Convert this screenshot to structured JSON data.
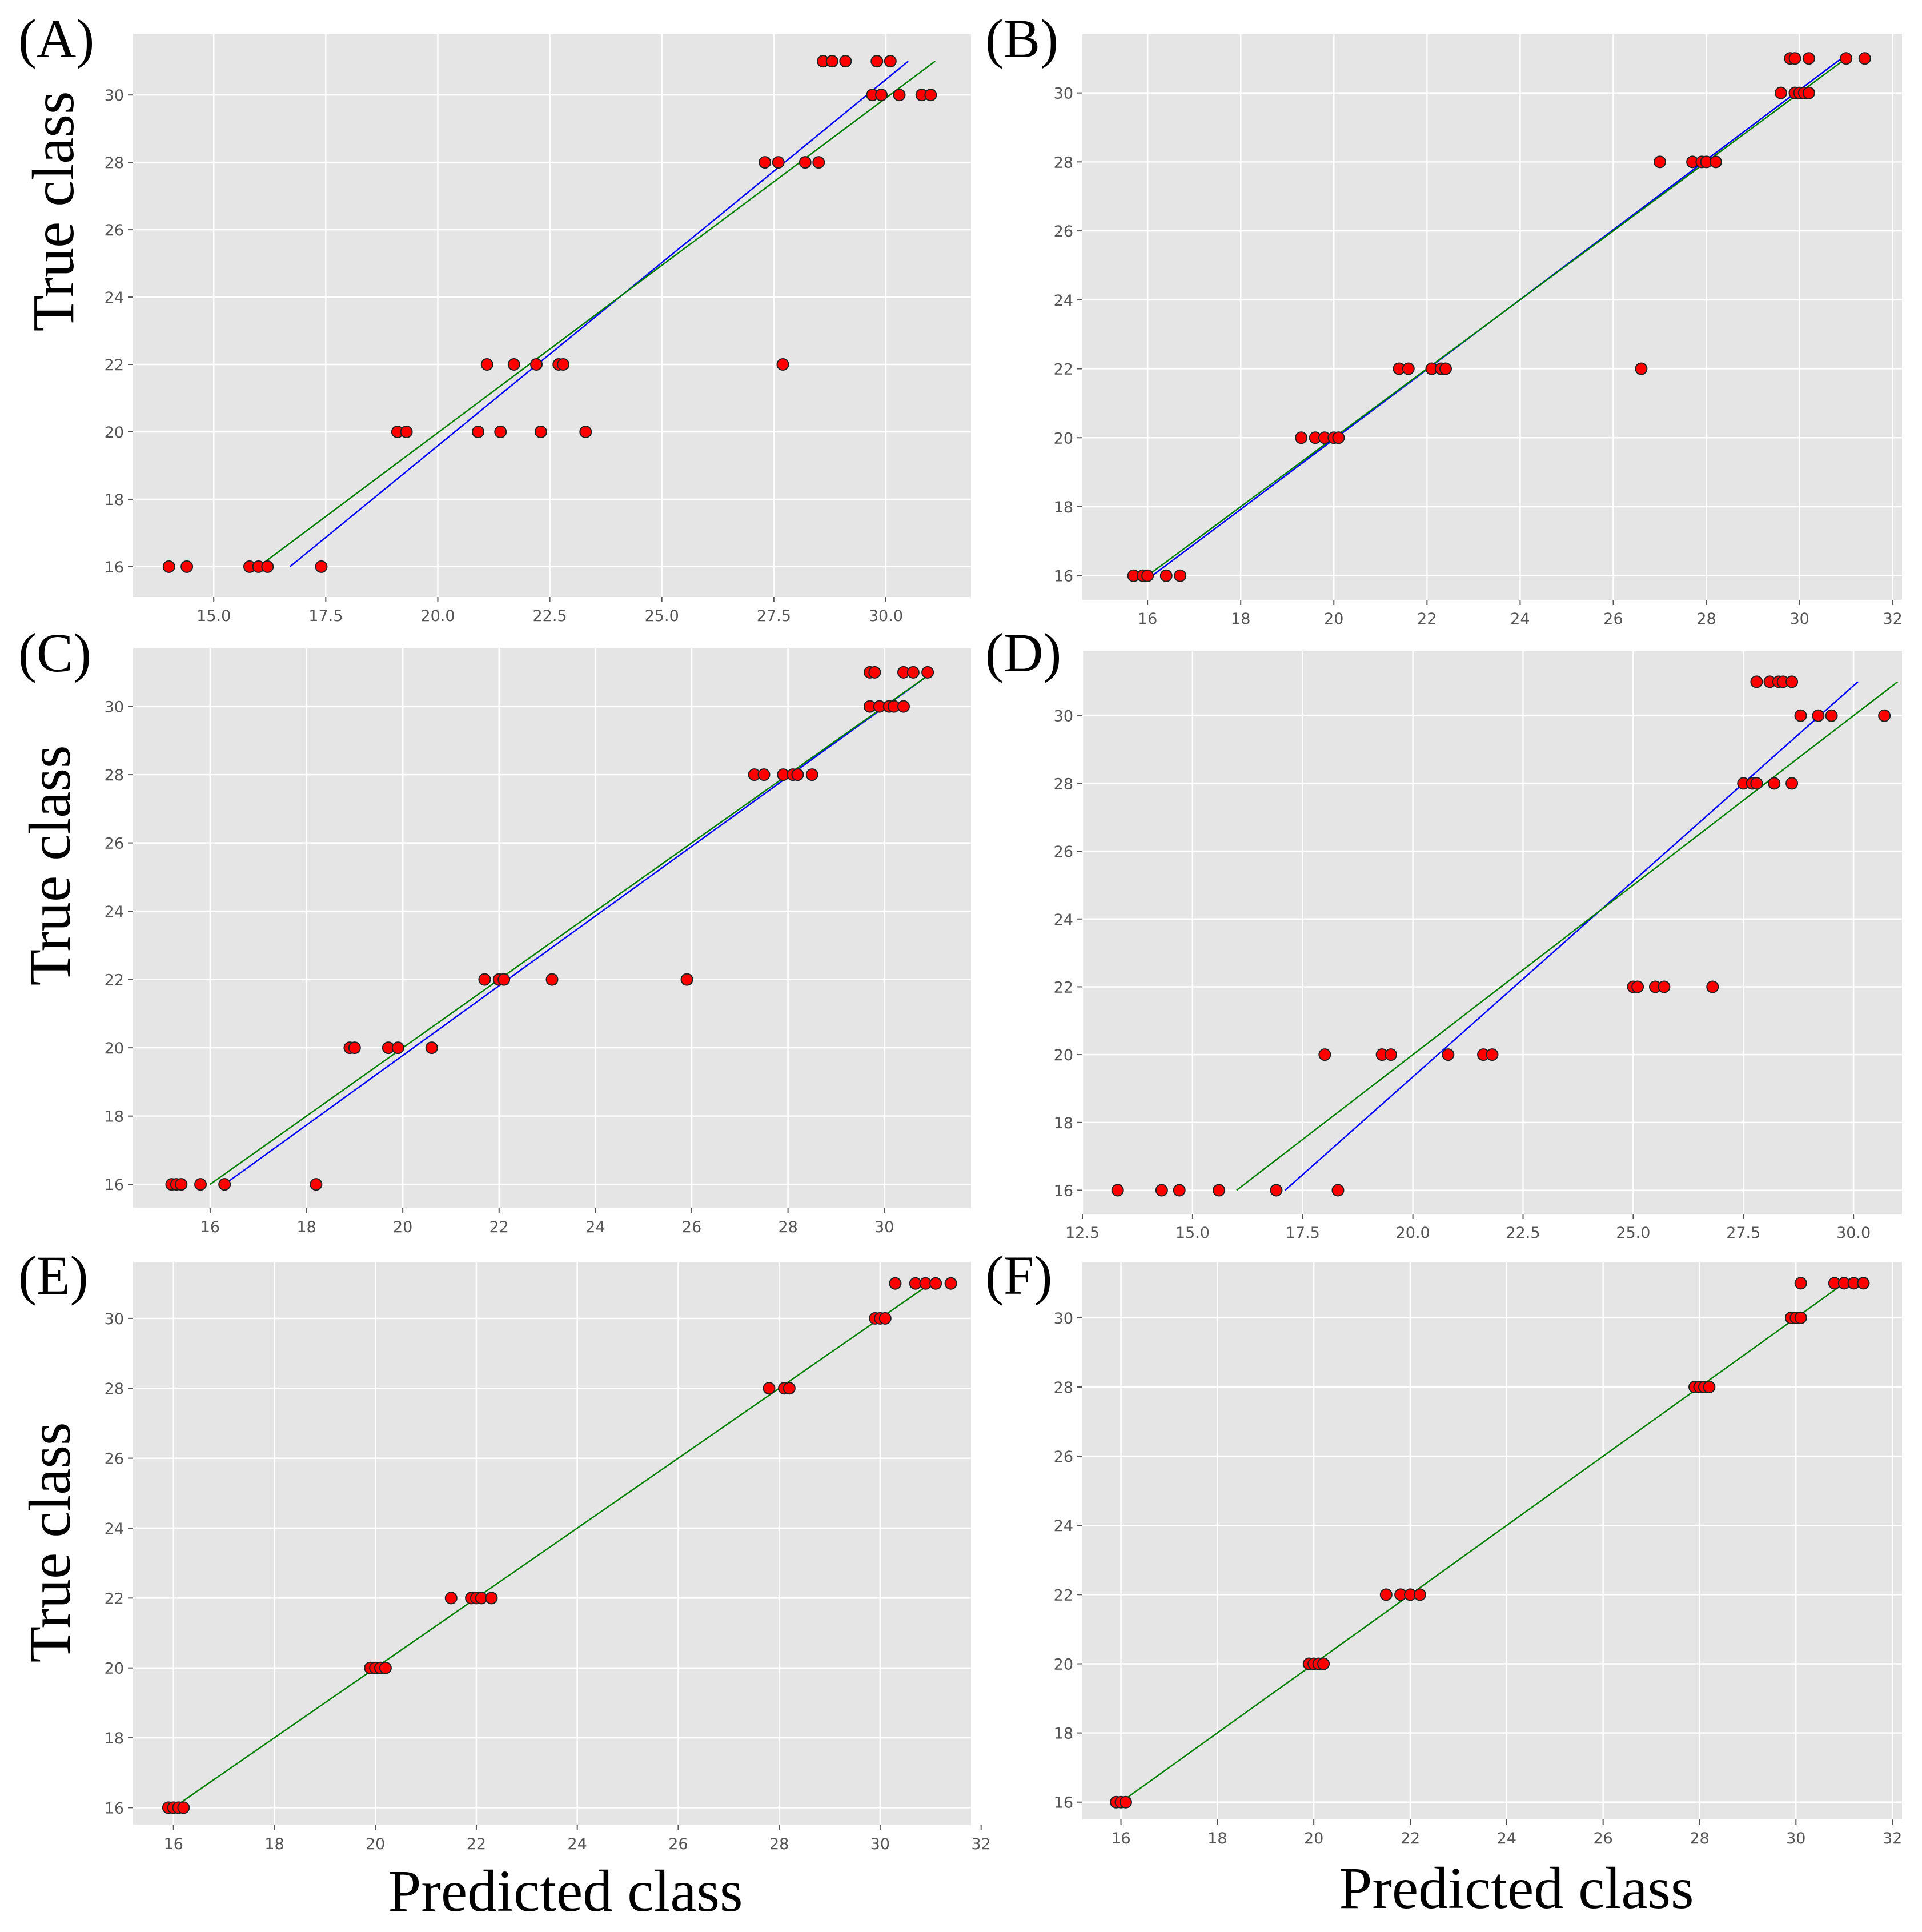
{
  "figure": {
    "xlabel": "Predicted class",
    "ylabel": "True class"
  },
  "chart_data": [
    {
      "type": "scatter",
      "panel": "(A)",
      "xlim": [
        13.2,
        31.9
      ],
      "ylim": [
        15.1,
        31.8
      ],
      "xticks": [
        15.0,
        17.5,
        20.0,
        22.5,
        25.0,
        27.5,
        30.0
      ],
      "xtick_labels": [
        "15.0",
        "17.5",
        "20.0",
        "22.5",
        "25.0",
        "27.5",
        "30.0"
      ],
      "yticks": [
        16,
        18,
        20,
        22,
        24,
        26,
        28,
        30
      ],
      "ytick_labels": [
        "16",
        "18",
        "20",
        "22",
        "24",
        "26",
        "28",
        "30"
      ],
      "points": {
        "x": [
          14.0,
          14.4,
          15.8,
          16.0,
          16.2,
          17.4,
          19.1,
          19.3,
          20.9,
          21.4,
          22.3,
          23.3,
          21.1,
          21.7,
          22.2,
          22.7,
          22.8,
          27.7,
          27.3,
          27.6,
          28.2,
          28.5,
          29.7,
          29.9,
          30.3,
          30.8,
          31.0,
          28.6,
          28.8,
          29.1,
          29.8,
          30.1
        ],
        "y": [
          16,
          16,
          16,
          16,
          16,
          16,
          20,
          20,
          20,
          20,
          20,
          20,
          22,
          22,
          22,
          22,
          22,
          22,
          28,
          28,
          28,
          28,
          30,
          30,
          30,
          30,
          30,
          31,
          31,
          31,
          31,
          31
        ]
      },
      "lines": [
        {
          "name": "blue fit",
          "color": "#0000ff",
          "x": [
            16.7,
            30.5
          ],
          "y": [
            16.0,
            31.0
          ]
        },
        {
          "name": "green fit",
          "color": "#008000",
          "x": [
            16.0,
            31.1
          ],
          "y": [
            16.0,
            31.0
          ]
        }
      ]
    },
    {
      "type": "scatter",
      "panel": "(B)",
      "xlim": [
        14.6,
        32.2
      ],
      "ylim": [
        15.3,
        31.7
      ],
      "xticks": [
        16,
        18,
        20,
        22,
        24,
        26,
        28,
        30,
        32
      ],
      "xtick_labels": [
        "16",
        "18",
        "20",
        "22",
        "24",
        "26",
        "28",
        "30",
        "32"
      ],
      "yticks": [
        16,
        18,
        20,
        22,
        24,
        26,
        28,
        30
      ],
      "ytick_labels": [
        "16",
        "18",
        "20",
        "22",
        "24",
        "26",
        "28",
        "30"
      ],
      "points": {
        "x": [
          15.7,
          15.9,
          16.0,
          16.4,
          16.7,
          19.3,
          19.6,
          19.8,
          20.0,
          20.1,
          21.4,
          21.6,
          22.1,
          22.3,
          22.4,
          26.6,
          27.0,
          27.7,
          27.9,
          28.0,
          28.2,
          29.6,
          29.9,
          30.0,
          30.1,
          30.2,
          29.8,
          29.9,
          30.2,
          31.0,
          31.4
        ],
        "y": [
          16,
          16,
          16,
          16,
          16,
          20,
          20,
          20,
          20,
          20,
          22,
          22,
          22,
          22,
          22,
          22,
          28,
          28,
          28,
          28,
          28,
          30,
          30,
          30,
          30,
          30,
          31,
          31,
          31,
          31,
          31
        ]
      },
      "lines": [
        {
          "name": "blue fit",
          "color": "#0000ff",
          "x": [
            16.1,
            30.9
          ],
          "y": [
            16.0,
            31.0
          ]
        },
        {
          "name": "green fit",
          "color": "#008000",
          "x": [
            16.0,
            31.0
          ],
          "y": [
            16.0,
            31.0
          ]
        }
      ]
    },
    {
      "type": "scatter",
      "panel": "(C)",
      "xlim": [
        14.4,
        31.8
      ],
      "ylim": [
        15.3,
        31.7
      ],
      "xticks": [
        16,
        18,
        20,
        22,
        24,
        26,
        28,
        30
      ],
      "xtick_labels": [
        "16",
        "18",
        "20",
        "22",
        "24",
        "26",
        "28",
        "30"
      ],
      "yticks": [
        16,
        18,
        20,
        22,
        24,
        26,
        28,
        30
      ],
      "ytick_labels": [
        "16",
        "18",
        "20",
        "22",
        "24",
        "26",
        "28",
        "30"
      ],
      "points": {
        "x": [
          15.2,
          15.3,
          15.4,
          15.8,
          16.3,
          18.2,
          18.9,
          19.0,
          19.7,
          19.9,
          20.6,
          21.7,
          22.0,
          22.1,
          23.1,
          25.9,
          27.3,
          27.5,
          27.9,
          28.1,
          28.2,
          28.5,
          29.7,
          29.9,
          30.1,
          30.2,
          30.4,
          29.7,
          29.8,
          30.4,
          30.6,
          30.9
        ],
        "y": [
          16,
          16,
          16,
          16,
          16,
          16,
          20,
          20,
          20,
          20,
          20,
          22,
          22,
          22,
          22,
          22,
          28,
          28,
          28,
          28,
          28,
          28,
          30,
          30,
          30,
          30,
          30,
          31,
          31,
          31,
          31,
          31
        ]
      },
      "lines": [
        {
          "name": "blue fit",
          "color": "#0000ff",
          "x": [
            16.3,
            31.0
          ],
          "y": [
            16.0,
            31.0
          ]
        },
        {
          "name": "green fit",
          "color": "#008000",
          "x": [
            16.0,
            31.0
          ],
          "y": [
            16.0,
            31.0
          ]
        }
      ]
    },
    {
      "type": "scatter",
      "panel": "(D)",
      "xlim": [
        12.5,
        31.1
      ],
      "ylim": [
        15.3,
        31.9
      ],
      "xticks": [
        12.5,
        15.0,
        17.5,
        20.0,
        22.5,
        25.0,
        27.5,
        30.0
      ],
      "xtick_labels": [
        "12.5",
        "15.0",
        "17.5",
        "20.0",
        "22.5",
        "25.0",
        "27.5",
        "30.0"
      ],
      "yticks": [
        16,
        18,
        20,
        22,
        24,
        26,
        28,
        30
      ],
      "ytick_labels": [
        "16",
        "18",
        "20",
        "22",
        "24",
        "26",
        "28",
        "30"
      ],
      "points": {
        "x": [
          13.3,
          14.3,
          14.7,
          15.6,
          16.9,
          18.3,
          18.0,
          19.3,
          19.5,
          20.8,
          21.6,
          21.8,
          25.0,
          25.1,
          25.5,
          25.7,
          26.8,
          27.5,
          27.7,
          27.8,
          28.2,
          28.6,
          28.8,
          29.2,
          29.5,
          30.7,
          27.8,
          28.1,
          28.3,
          28.4,
          28.6
        ],
        "y": [
          16,
          16,
          16,
          16,
          16,
          16,
          20,
          20,
          20,
          20,
          20,
          20,
          22,
          22,
          22,
          22,
          22,
          28,
          28,
          28,
          28,
          28,
          30,
          30,
          30,
          30,
          31,
          31,
          31,
          31,
          31
        ]
      },
      "lines": [
        {
          "name": "blue fit",
          "color": "#0000ff",
          "x": [
            17.1,
            30.1
          ],
          "y": [
            16.0,
            31.0
          ]
        },
        {
          "name": "green fit",
          "color": "#008000",
          "x": [
            16.0,
            31.0
          ],
          "y": [
            16.0,
            31.0
          ]
        }
      ]
    },
    {
      "type": "scatter",
      "panel": "(E)",
      "xlim": [
        15.2,
        31.8
      ],
      "ylim": [
        15.5,
        31.6
      ],
      "xticks": [
        16,
        18,
        20,
        22,
        24,
        26,
        28,
        30,
        32
      ],
      "xtick_labels": [
        "16",
        "18",
        "20",
        "22",
        "24",
        "26",
        "28",
        "30",
        "32"
      ],
      "yticks": [
        16,
        18,
        20,
        22,
        24,
        26,
        28,
        30
      ],
      "ytick_labels": [
        "16",
        "18",
        "20",
        "22",
        "24",
        "26",
        "28",
        "30"
      ],
      "points": {
        "x": [
          15.9,
          16.0,
          16.1,
          16.2,
          19.9,
          20.0,
          20.1,
          20.2,
          21.5,
          21.9,
          22.0,
          22.1,
          22.3,
          27.8,
          28.1,
          28.2,
          29.9,
          30.0,
          30.1,
          30.3,
          30.7,
          30.9,
          31.1,
          31.4
        ],
        "y": [
          16,
          16,
          16,
          16,
          20,
          20,
          20,
          20,
          22,
          22,
          22,
          22,
          22,
          28,
          28,
          28,
          30,
          30,
          30,
          31,
          31,
          31,
          31,
          31
        ]
      },
      "lines": [
        {
          "name": "green fit",
          "color": "#008000",
          "x": [
            16.0,
            31.0
          ],
          "y": [
            16.0,
            31.0
          ]
        }
      ]
    },
    {
      "type": "scatter",
      "panel": "(F)",
      "xlim": [
        15.2,
        32.2
      ],
      "ylim": [
        15.5,
        31.6
      ],
      "xticks": [
        16,
        18,
        20,
        22,
        24,
        26,
        28,
        30,
        32
      ],
      "xtick_labels": [
        "16",
        "18",
        "20",
        "22",
        "24",
        "26",
        "28",
        "30",
        "32"
      ],
      "yticks": [
        16,
        18,
        20,
        22,
        24,
        26,
        28,
        30
      ],
      "ytick_labels": [
        "16",
        "18",
        "20",
        "22",
        "24",
        "26",
        "28",
        "30"
      ],
      "points": {
        "x": [
          15.9,
          16.0,
          16.1,
          19.9,
          20.0,
          20.1,
          20.2,
          21.5,
          21.8,
          22.0,
          22.2,
          27.9,
          28.0,
          28.1,
          28.2,
          29.9,
          30.0,
          30.1,
          30.1,
          30.8,
          31.0,
          31.2,
          31.4
        ],
        "y": [
          16,
          16,
          16,
          20,
          20,
          20,
          20,
          22,
          22,
          22,
          22,
          28,
          28,
          28,
          28,
          30,
          30,
          30,
          31,
          31,
          31,
          31,
          31
        ]
      },
      "lines": [
        {
          "name": "green fit",
          "color": "#008000",
          "x": [
            16.0,
            31.0
          ],
          "y": [
            16.0,
            31.0
          ]
        }
      ]
    }
  ]
}
